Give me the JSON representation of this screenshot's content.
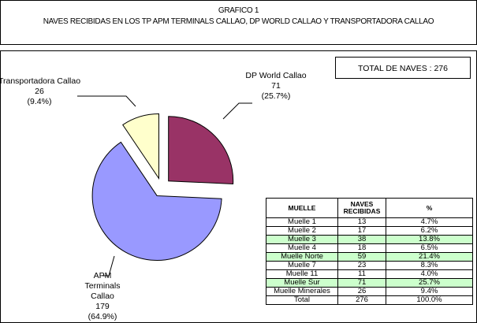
{
  "chart_data": {
    "type": "pie",
    "title": "GRAFICO 1",
    "subtitle": "NAVES RECIBIDAS   EN LOS TP APM TERMINALS CALLAO, DP WORLD CALLAO Y TRANSPORTADORA  CALLAO",
    "categories": [
      "DP World Callao",
      "APM Terminals Callao",
      "Transportadora Callao"
    ],
    "values": [
      71,
      179,
      26
    ],
    "percent_labels": [
      "(25.7%)",
      "(64.9%)",
      "(9.4%)"
    ],
    "colors": [
      "#993366",
      "#9999ff",
      "#ffffcc"
    ],
    "annotation": "TOTAL DE NAVES : 276"
  },
  "table": {
    "headers": [
      "MUELLE",
      "NAVES RECIBIDAS",
      "%"
    ],
    "rows": [
      [
        "Muelle 1",
        13,
        "4.7%"
      ],
      [
        "Muelle 2",
        17,
        "6.2%"
      ],
      [
        "Muelle 3",
        38,
        "13.8%"
      ],
      [
        "Muelle 4",
        18,
        "6.5%"
      ],
      [
        "Muelle Norte",
        59,
        "21.4%"
      ],
      [
        "Muelle 7",
        23,
        "8.3%"
      ],
      [
        "Muelle 11",
        11,
        "4.0%"
      ],
      [
        "Muelle Sur",
        71,
        "25.7%"
      ],
      [
        "Muelle Minerales",
        26,
        "9.4%"
      ],
      [
        "Total",
        276,
        "100.0%"
      ]
    ],
    "highlight_rows": [
      false,
      false,
      true,
      false,
      true,
      false,
      false,
      true,
      false,
      false
    ],
    "highlight_color": "#ccffcc"
  }
}
